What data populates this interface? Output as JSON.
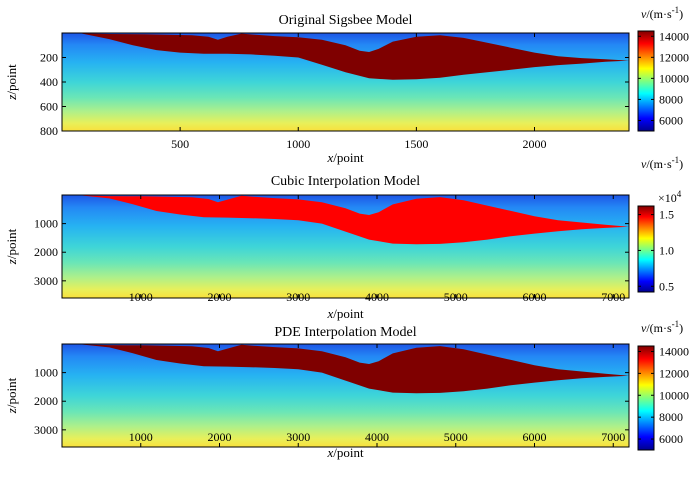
{
  "chart_data": [
    {
      "type": "heatmap",
      "title": "Original Sigsbee Model",
      "xlabel_var": "x",
      "xlabel_unit": "/point",
      "ylabel_var": "z",
      "ylabel_unit": "/point",
      "xlim": [
        0,
        2400
      ],
      "ylim": [
        0,
        800
      ],
      "xticks": [
        500,
        1000,
        1500,
        2000
      ],
      "yticks": [
        200,
        400,
        600,
        800
      ],
      "colorbar": {
        "label_var": "v",
        "label_unit": "/(m·s",
        "label_sup": "-1",
        "label_close": ")",
        "range": [
          5000,
          14500
        ],
        "ticks": [
          6000,
          8000,
          10000,
          12000,
          14000
        ],
        "tick_labels": [
          "6000",
          "8000",
          "10000",
          "12000",
          "14000"
        ],
        "multiplier": ""
      },
      "salt_color": "#7f0000",
      "salt_outline": [
        [
          80,
          3
        ],
        [
          200,
          8
        ],
        [
          350,
          10
        ],
        [
          550,
          18
        ],
        [
          620,
          30
        ],
        [
          660,
          55
        ],
        [
          700,
          30
        ],
        [
          760,
          5
        ],
        [
          820,
          15
        ],
        [
          900,
          25
        ],
        [
          1000,
          35
        ],
        [
          1100,
          55
        ],
        [
          1200,
          100
        ],
        [
          1260,
          145
        ],
        [
          1300,
          155
        ],
        [
          1340,
          130
        ],
        [
          1400,
          70
        ],
        [
          1500,
          30
        ],
        [
          1600,
          18
        ],
        [
          1700,
          40
        ],
        [
          1800,
          80
        ],
        [
          1900,
          120
        ],
        [
          2000,
          160
        ],
        [
          2100,
          190
        ],
        [
          2200,
          205
        ],
        [
          2300,
          215
        ],
        [
          2400,
          225
        ],
        [
          2300,
          235
        ],
        [
          2200,
          250
        ],
        [
          2100,
          262
        ],
        [
          2000,
          278
        ],
        [
          1900,
          300
        ],
        [
          1800,
          320
        ],
        [
          1700,
          340
        ],
        [
          1600,
          365
        ],
        [
          1500,
          378
        ],
        [
          1400,
          382
        ],
        [
          1300,
          370
        ],
        [
          1200,
          320
        ],
        [
          1100,
          260
        ],
        [
          1000,
          200
        ],
        [
          900,
          185
        ],
        [
          800,
          175
        ],
        [
          700,
          170
        ],
        [
          600,
          170
        ],
        [
          500,
          160
        ],
        [
          400,
          140
        ],
        [
          300,
          100
        ],
        [
          200,
          50
        ],
        [
          80,
          3
        ]
      ]
    },
    {
      "type": "heatmap",
      "title": "Cubic Interpolation Model",
      "xlabel_var": "x",
      "xlabel_unit": "/point",
      "ylabel_var": "z",
      "ylabel_unit": "/point",
      "xlim": [
        0,
        7200
      ],
      "ylim": [
        0,
        3600
      ],
      "xticks": [
        1000,
        2000,
        3000,
        4000,
        5000,
        6000,
        7000
      ],
      "yticks": [
        1000,
        2000,
        3000
      ],
      "colorbar": {
        "label_var": "v",
        "label_unit": "/(m·s",
        "label_sup": "-1",
        "label_close": ")",
        "range": [
          0.42,
          1.62
        ],
        "ticks": [
          0.5,
          1.0,
          1.5
        ],
        "tick_labels": [
          "0.5",
          "1.0",
          "1.5"
        ],
        "multiplier": "×10",
        "multiplier_exp": "4"
      },
      "salt_color": "#ff0000",
      "salt_outline": [
        [
          240,
          13
        ],
        [
          600,
          40
        ],
        [
          1050,
          45
        ],
        [
          1650,
          80
        ],
        [
          1860,
          140
        ],
        [
          1980,
          250
        ],
        [
          2130,
          140
        ],
        [
          2280,
          23
        ],
        [
          2460,
          65
        ],
        [
          2700,
          110
        ],
        [
          3000,
          155
        ],
        [
          3300,
          250
        ],
        [
          3600,
          460
        ],
        [
          3780,
          650
        ],
        [
          3900,
          700
        ],
        [
          4020,
          600
        ],
        [
          4200,
          330
        ],
        [
          4500,
          130
        ],
        [
          4800,
          75
        ],
        [
          5100,
          185
        ],
        [
          5400,
          370
        ],
        [
          5700,
          555
        ],
        [
          6000,
          740
        ],
        [
          6300,
          880
        ],
        [
          6600,
          960
        ],
        [
          6900,
          1040
        ],
        [
          7200,
          1110
        ],
        [
          6900,
          1150
        ],
        [
          6600,
          1200
        ],
        [
          6300,
          1270
        ],
        [
          6000,
          1350
        ],
        [
          5700,
          1440
        ],
        [
          5400,
          1560
        ],
        [
          5100,
          1650
        ],
        [
          4800,
          1710
        ],
        [
          4500,
          1720
        ],
        [
          4200,
          1700
        ],
        [
          3900,
          1560
        ],
        [
          3600,
          1280
        ],
        [
          3300,
          1000
        ],
        [
          3000,
          880
        ],
        [
          2700,
          840
        ],
        [
          2400,
          810
        ],
        [
          2100,
          790
        ],
        [
          1800,
          780
        ],
        [
          1500,
          680
        ],
        [
          1200,
          560
        ],
        [
          900,
          320
        ],
        [
          600,
          120
        ],
        [
          240,
          13
        ]
      ]
    },
    {
      "type": "heatmap",
      "title": "PDE  Interpolation Model",
      "xlabel_var": "x",
      "xlabel_unit": "/point",
      "ylabel_var": "z",
      "ylabel_unit": "/point",
      "xlim": [
        0,
        7200
      ],
      "ylim": [
        0,
        3600
      ],
      "xticks": [
        1000,
        2000,
        3000,
        4000,
        5000,
        6000,
        7000
      ],
      "yticks": [
        1000,
        2000,
        3000
      ],
      "colorbar": {
        "label_var": "v",
        "label_unit": "/(m·s",
        "label_sup": "-1",
        "label_close": ")",
        "range": [
          5000,
          14500
        ],
        "ticks": [
          6000,
          8000,
          10000,
          12000,
          14000
        ],
        "tick_labels": [
          "6000",
          "8000",
          "10000",
          "12000",
          "14000"
        ],
        "multiplier": ""
      },
      "salt_color": "#7f0000",
      "salt_outline": [
        [
          240,
          13
        ],
        [
          600,
          40
        ],
        [
          1050,
          45
        ],
        [
          1650,
          80
        ],
        [
          1860,
          140
        ],
        [
          1980,
          250
        ],
        [
          2130,
          140
        ],
        [
          2280,
          23
        ],
        [
          2460,
          65
        ],
        [
          2700,
          110
        ],
        [
          3000,
          155
        ],
        [
          3300,
          250
        ],
        [
          3600,
          460
        ],
        [
          3780,
          650
        ],
        [
          3900,
          700
        ],
        [
          4020,
          600
        ],
        [
          4200,
          330
        ],
        [
          4500,
          130
        ],
        [
          4800,
          75
        ],
        [
          5100,
          185
        ],
        [
          5400,
          370
        ],
        [
          5700,
          555
        ],
        [
          6000,
          740
        ],
        [
          6300,
          880
        ],
        [
          6600,
          960
        ],
        [
          6900,
          1040
        ],
        [
          7200,
          1110
        ],
        [
          6900,
          1150
        ],
        [
          6600,
          1200
        ],
        [
          6300,
          1270
        ],
        [
          6000,
          1350
        ],
        [
          5700,
          1440
        ],
        [
          5400,
          1560
        ],
        [
          5100,
          1650
        ],
        [
          4800,
          1710
        ],
        [
          4500,
          1720
        ],
        [
          4200,
          1700
        ],
        [
          3900,
          1560
        ],
        [
          3600,
          1280
        ],
        [
          3300,
          1000
        ],
        [
          3000,
          880
        ],
        [
          2700,
          840
        ],
        [
          2400,
          810
        ],
        [
          2100,
          790
        ],
        [
          1800,
          780
        ],
        [
          1500,
          680
        ],
        [
          1200,
          560
        ],
        [
          900,
          320
        ],
        [
          600,
          120
        ],
        [
          240,
          13
        ]
      ]
    }
  ]
}
